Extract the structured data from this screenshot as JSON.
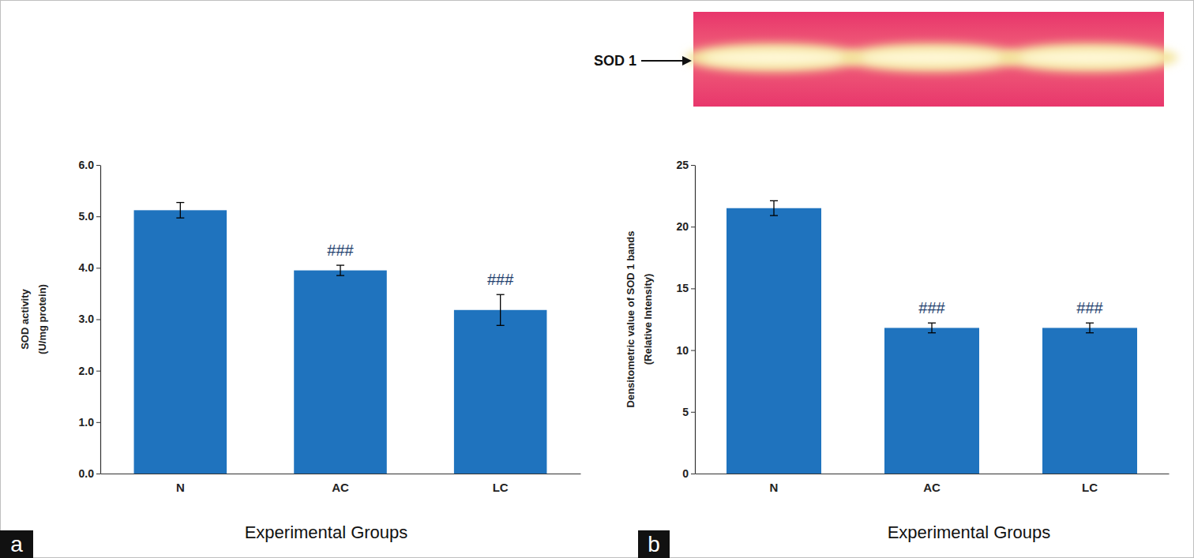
{
  "chart_data": [
    {
      "type": "bar",
      "panel_label": "a",
      "y_label": [
        "SOD activity",
        "(U/mg protein)"
      ],
      "x_label": "Experimental Groups",
      "categories": [
        "N",
        "AC",
        "LC"
      ],
      "values": [
        5.12,
        3.95,
        3.18
      ],
      "errors": [
        0.15,
        0.1,
        0.3
      ],
      "color": "#1f73be",
      "ylim": [
        0,
        6
      ],
      "yticks": [
        {
          "value": 0,
          "label": "0.0"
        },
        {
          "value": 1,
          "label": "1.0"
        },
        {
          "value": 2,
          "label": "2.0"
        },
        {
          "value": 3,
          "label": "3.0"
        },
        {
          "value": 4,
          "label": "4.0"
        },
        {
          "value": 5,
          "label": "5.0"
        },
        {
          "value": 6,
          "label": "6.0"
        }
      ],
      "annotations": [
        {
          "category": "AC",
          "text": "###"
        },
        {
          "category": "LC",
          "text": "###"
        }
      ]
    },
    {
      "type": "bar",
      "panel_label": "b",
      "blot_label": "SOD 1",
      "y_label": [
        "Densitometric value of SOD 1 bands",
        "(Relative Intensity)"
      ],
      "x_label": "Experimental Groups",
      "categories": [
        "N",
        "AC",
        "LC"
      ],
      "values": [
        21.5,
        11.8,
        11.8
      ],
      "errors": [
        0.6,
        0.4,
        0.4
      ],
      "color": "#1f73be",
      "ylim": [
        0,
        25
      ],
      "yticks": [
        0,
        5,
        10,
        15,
        20,
        25
      ],
      "annotations": [
        {
          "category": "AC",
          "text": "###"
        },
        {
          "category": "LC",
          "text": "###"
        }
      ]
    }
  ]
}
